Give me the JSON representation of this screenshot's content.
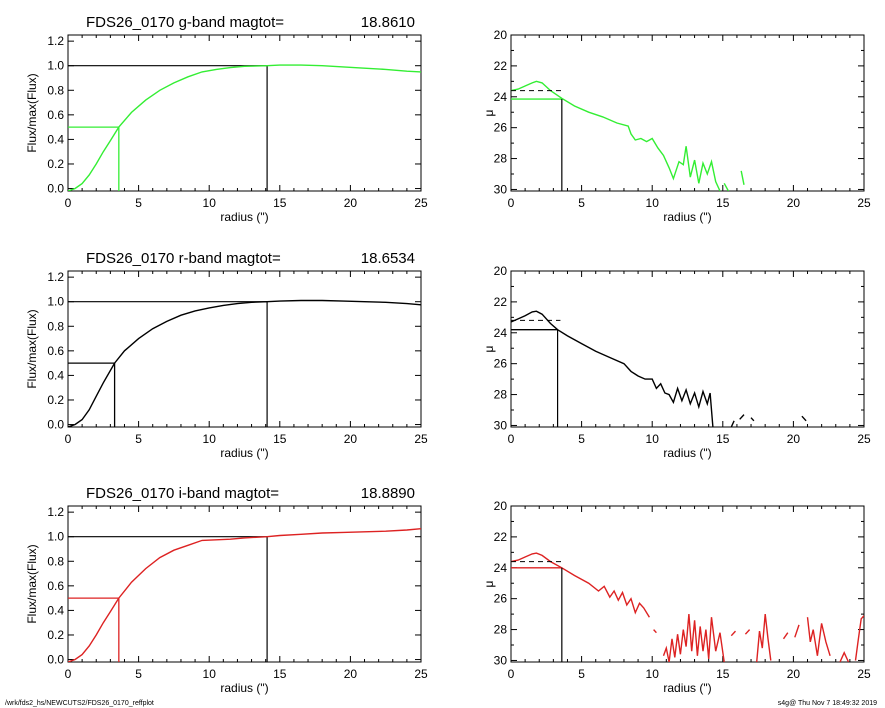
{
  "footer": {
    "left": "/wrk/fds2_hs/NEWCUTS2/FDS26_0170_reffplot",
    "right": "s4g@  Thu Nov  7 18:49:32 2019"
  },
  "colors": {
    "g": "#33ee33",
    "r": "#000000",
    "i": "#dd2222",
    "ref": "#000000"
  },
  "chart_data": [
    {
      "type": "line",
      "title_name": "FDS26_0170 g-band  magtot=",
      "title_value": "18.8610",
      "xlabel": "radius (\")",
      "ylabel": "Flux/max(Flux)",
      "xlim": [
        0,
        25
      ],
      "ylim": [
        -0.02,
        1.25
      ],
      "xticks": [
        0,
        5,
        10,
        15,
        20,
        25
      ],
      "yticks": [
        0.0,
        0.2,
        0.4,
        0.6,
        0.8,
        1.0,
        1.2
      ],
      "ytick_labels": [
        "0.0",
        "0.2",
        "0.4",
        "0.6",
        "0.8",
        "1.0",
        "1.2"
      ],
      "color": "g",
      "half_radius": 3.6,
      "total_radius": 14.1,
      "x": [
        0,
        0.5,
        1,
        1.5,
        2,
        2.5,
        3,
        3.6,
        4.5,
        5.5,
        6.5,
        7.5,
        8.5,
        9.5,
        10.5,
        11.5,
        12.5,
        14.1,
        15,
        16.5,
        18,
        19.5,
        21,
        22.5,
        24,
        25
      ],
      "y": [
        -0.02,
        0.0,
        0.04,
        0.11,
        0.2,
        0.3,
        0.39,
        0.5,
        0.62,
        0.72,
        0.8,
        0.86,
        0.91,
        0.95,
        0.97,
        0.985,
        0.995,
        1.0,
        1.005,
        1.005,
        1.0,
        0.99,
        0.98,
        0.97,
        0.955,
        0.95
      ]
    },
    {
      "type": "line",
      "title": "",
      "ylabel": "μ",
      "xlabel": "radius (\")",
      "xlim": [
        0,
        25
      ],
      "ylim": [
        30.1,
        20
      ],
      "ylim_note": "inverted",
      "xticks": [
        0,
        5,
        10,
        15,
        20,
        25
      ],
      "yticks": [
        20,
        22,
        24,
        26,
        28,
        30
      ],
      "color": "g",
      "re": 3.6,
      "mu_e": 24.15,
      "mu_mean": 23.6,
      "dash_end": 3.7,
      "segments": [
        [
          [
            0,
            23.6
          ],
          [
            0.5,
            23.5
          ],
          [
            1,
            23.3
          ],
          [
            1.5,
            23.1
          ],
          [
            1.8,
            23.0
          ],
          [
            2.2,
            23.1
          ],
          [
            2.8,
            23.6
          ],
          [
            3.6,
            24.1
          ],
          [
            4.5,
            24.6
          ],
          [
            5.5,
            25.0
          ],
          [
            6.5,
            25.3
          ],
          [
            7.5,
            25.7
          ],
          [
            8.3,
            25.9
          ],
          [
            8.5,
            26.4
          ],
          [
            8.8,
            26.8
          ],
          [
            9.2,
            26.7
          ],
          [
            9.6,
            26.9
          ],
          [
            10,
            26.7
          ],
          [
            10.4,
            27.3
          ],
          [
            10.8,
            27.8
          ],
          [
            11.2,
            28.6
          ],
          [
            11.5,
            29.3
          ],
          [
            11.9,
            28.2
          ],
          [
            12.2,
            28.4
          ],
          [
            12.4,
            27.2
          ],
          [
            12.7,
            29.2
          ],
          [
            13,
            28.1
          ],
          [
            13.3,
            29.6
          ],
          [
            13.6,
            28.3
          ],
          [
            13.9,
            29.0
          ],
          [
            14.2,
            28.2
          ],
          [
            14.5,
            29.5
          ],
          [
            14.8,
            30.1
          ]
        ],
        [
          [
            15.1,
            29.6
          ],
          [
            15.4,
            30.1
          ]
        ],
        [
          [
            16.3,
            28.8
          ],
          [
            16.5,
            29.7
          ]
        ]
      ]
    },
    {
      "type": "line",
      "title_name": "FDS26_0170 r-band  magtot=",
      "title_value": "18.6534",
      "xlabel": "radius (\")",
      "ylabel": "Flux/max(Flux)",
      "xlim": [
        0,
        25
      ],
      "ylim": [
        -0.02,
        1.25
      ],
      "xticks": [
        0,
        5,
        10,
        15,
        20,
        25
      ],
      "yticks": [
        0.0,
        0.2,
        0.4,
        0.6,
        0.8,
        1.0,
        1.2
      ],
      "ytick_labels": [
        "0.0",
        "0.2",
        "0.4",
        "0.6",
        "0.8",
        "1.0",
        "1.2"
      ],
      "color": "r",
      "half_radius": 3.3,
      "total_radius": 14.1,
      "x": [
        0,
        0.5,
        1,
        1.5,
        2,
        2.5,
        3.3,
        4,
        5,
        6,
        7,
        8,
        9,
        10,
        11,
        12,
        13,
        14.1,
        15,
        16.5,
        18,
        19.5,
        21,
        22.5,
        24,
        25
      ],
      "y": [
        -0.02,
        0.0,
        0.04,
        0.12,
        0.23,
        0.34,
        0.5,
        0.6,
        0.7,
        0.78,
        0.84,
        0.89,
        0.925,
        0.95,
        0.97,
        0.985,
        0.995,
        1.0,
        1.005,
        1.01,
        1.01,
        1.005,
        1.0,
        0.995,
        0.985,
        0.975
      ]
    },
    {
      "type": "line",
      "title": "",
      "ylabel": "μ",
      "xlabel": "radius (\")",
      "xlim": [
        0,
        25
      ],
      "ylim": [
        30.1,
        20
      ],
      "ylim_note": "inverted",
      "xticks": [
        0,
        5,
        10,
        15,
        20,
        25
      ],
      "yticks": [
        20,
        22,
        24,
        26,
        28,
        30
      ],
      "color": "r",
      "re": 3.3,
      "mu_e": 23.8,
      "mu_mean": 23.2,
      "dash_end": 3.5,
      "segments": [
        [
          [
            0,
            23.3
          ],
          [
            0.5,
            23.1
          ],
          [
            1,
            22.9
          ],
          [
            1.5,
            22.65
          ],
          [
            1.8,
            22.6
          ],
          [
            2.2,
            22.8
          ],
          [
            2.8,
            23.4
          ],
          [
            3.3,
            23.8
          ],
          [
            4,
            24.2
          ],
          [
            5,
            24.7
          ],
          [
            6,
            25.2
          ],
          [
            7,
            25.6
          ],
          [
            8,
            26.0
          ],
          [
            8.5,
            26.5
          ],
          [
            9,
            26.8
          ],
          [
            9.5,
            27.0
          ],
          [
            10,
            27.0
          ],
          [
            10.3,
            27.6
          ],
          [
            10.6,
            27.3
          ],
          [
            10.9,
            27.9
          ],
          [
            11.2,
            28.0
          ],
          [
            11.5,
            28.5
          ],
          [
            11.8,
            27.6
          ],
          [
            12.1,
            28.4
          ],
          [
            12.4,
            27.7
          ],
          [
            12.7,
            28.6
          ],
          [
            13,
            27.9
          ],
          [
            13.3,
            28.8
          ],
          [
            13.6,
            27.8
          ],
          [
            13.9,
            28.6
          ],
          [
            14.1,
            27.9
          ],
          [
            14.3,
            30.1
          ]
        ],
        [
          [
            15.6,
            30.1
          ],
          [
            15.8,
            29.7
          ]
        ],
        [
          [
            16.2,
            29.6
          ],
          [
            16.5,
            29.3
          ]
        ],
        [
          [
            17.0,
            29.5
          ],
          [
            17.2,
            29.7
          ]
        ],
        [
          [
            20.6,
            29.4
          ],
          [
            20.9,
            29.7
          ]
        ]
      ]
    },
    {
      "type": "line",
      "title_name": "FDS26_0170 i-band  magtot=",
      "title_value": "18.8890",
      "xlabel": "radius (\")",
      "ylabel": "Flux/max(Flux)",
      "xlim": [
        0,
        25
      ],
      "ylim": [
        -0.02,
        1.25
      ],
      "xticks": [
        0,
        5,
        10,
        15,
        20,
        25
      ],
      "yticks": [
        0.0,
        0.2,
        0.4,
        0.6,
        0.8,
        1.0,
        1.2
      ],
      "ytick_labels": [
        "0.0",
        "0.2",
        "0.4",
        "0.6",
        "0.8",
        "1.0",
        "1.2"
      ],
      "color": "i",
      "half_radius": 3.6,
      "total_radius": 14.1,
      "x": [
        0,
        0.5,
        1,
        1.5,
        2,
        2.5,
        3,
        3.6,
        4.5,
        5.5,
        6.5,
        7.5,
        8.5,
        9.5,
        10.5,
        11.5,
        12.5,
        14.1,
        15,
        16.5,
        18,
        19.5,
        21,
        22.5,
        24,
        25
      ],
      "y": [
        -0.02,
        0.0,
        0.04,
        0.11,
        0.2,
        0.3,
        0.39,
        0.5,
        0.63,
        0.74,
        0.83,
        0.89,
        0.93,
        0.97,
        0.975,
        0.98,
        0.99,
        1.0,
        1.01,
        1.02,
        1.03,
        1.035,
        1.04,
        1.045,
        1.055,
        1.065
      ]
    },
    {
      "type": "line",
      "title": "",
      "ylabel": "μ",
      "xlabel": "radius (\")",
      "xlim": [
        0,
        25
      ],
      "ylim": [
        30.1,
        20
      ],
      "ylim_note": "inverted",
      "xticks": [
        0,
        5,
        10,
        15,
        20,
        25
      ],
      "yticks": [
        20,
        22,
        24,
        26,
        28,
        30
      ],
      "color": "i",
      "re": 3.6,
      "mu_e": 24.0,
      "mu_mean": 23.6,
      "dash_end": 3.7,
      "segments": [
        [
          [
            0,
            23.6
          ],
          [
            0.5,
            23.5
          ],
          [
            1,
            23.3
          ],
          [
            1.5,
            23.1
          ],
          [
            1.8,
            23.05
          ],
          [
            2.2,
            23.2
          ],
          [
            2.8,
            23.6
          ],
          [
            3.6,
            24.0
          ],
          [
            4.5,
            24.5
          ],
          [
            5.5,
            25.0
          ],
          [
            6.2,
            25.5
          ],
          [
            6.6,
            25.2
          ],
          [
            7,
            25.9
          ],
          [
            7.3,
            25.5
          ],
          [
            7.6,
            26.1
          ],
          [
            7.9,
            25.6
          ],
          [
            8.2,
            26.4
          ],
          [
            8.5,
            26.0
          ],
          [
            8.8,
            26.9
          ],
          [
            9.1,
            26.3
          ],
          [
            9.4,
            26.6
          ],
          [
            9.8,
            27.2
          ]
        ],
        [
          [
            10.1,
            28.0
          ],
          [
            10.3,
            28.2
          ]
        ],
        [
          [
            10.8,
            29.7
          ],
          [
            11.0,
            29.2
          ],
          [
            11.2,
            30.1
          ],
          [
            11.4,
            28.6
          ],
          [
            11.6,
            29.8
          ],
          [
            11.8,
            28.3
          ],
          [
            12.0,
            29.6
          ],
          [
            12.2,
            28.0
          ],
          [
            12.4,
            29.1
          ],
          [
            12.6,
            27.0
          ],
          [
            12.8,
            29.4
          ],
          [
            13.0,
            27.4
          ],
          [
            13.2,
            29.7
          ],
          [
            13.4,
            27.8
          ],
          [
            13.6,
            29.4
          ],
          [
            13.8,
            28.0
          ],
          [
            14.0,
            29.9
          ],
          [
            14.2,
            27.2
          ],
          [
            14.5,
            29.4
          ],
          [
            14.8,
            28.2
          ],
          [
            15.1,
            30.1
          ]
        ],
        [
          [
            15.6,
            28.4
          ],
          [
            15.9,
            28.1
          ]
        ],
        [
          [
            16.6,
            28.3
          ],
          [
            16.9,
            28.0
          ]
        ],
        [
          [
            17.4,
            30.1
          ],
          [
            17.6,
            28.1
          ],
          [
            17.8,
            29.2
          ],
          [
            18.0,
            27.0
          ],
          [
            18.2,
            28.6
          ],
          [
            18.4,
            30.0
          ]
        ],
        [
          [
            19.3,
            28.6
          ],
          [
            19.6,
            28.2
          ]
        ],
        [
          [
            20.1,
            28.5
          ],
          [
            20.4,
            27.7
          ]
        ],
        [
          [
            21.0,
            27.2
          ],
          [
            21.2,
            28.8
          ],
          [
            21.4,
            28.0
          ],
          [
            21.7,
            29.7
          ],
          [
            22.0,
            27.6
          ],
          [
            22.3,
            28.8
          ],
          [
            22.6,
            29.7
          ]
        ],
        [
          [
            23.3,
            30.1
          ],
          [
            23.6,
            29.5
          ],
          [
            23.9,
            30.1
          ]
        ],
        [
          [
            24.4,
            30.0
          ],
          [
            24.6,
            28.6
          ],
          [
            24.8,
            27.3
          ],
          [
            25.0,
            27.1
          ]
        ]
      ]
    }
  ]
}
